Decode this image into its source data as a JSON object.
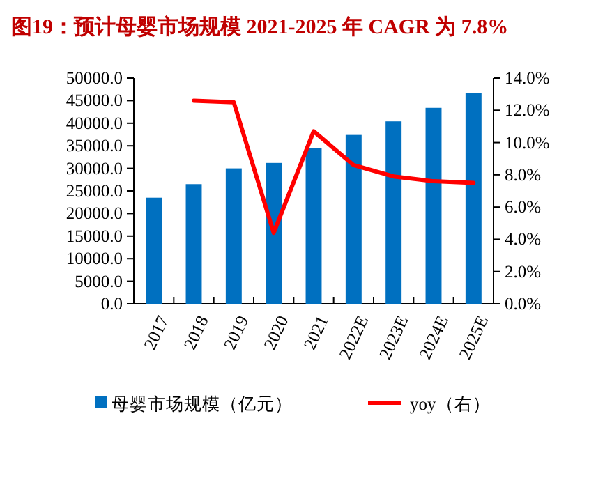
{
  "chart_data": {
    "type": "bar",
    "title": "图19：预计母婴市场规模 2021-2025 年 CAGR 为 7.8%",
    "categories": [
      "2017",
      "2018",
      "2019",
      "2020",
      "2021",
      "2022E",
      "2023E",
      "2024E",
      "2025E"
    ],
    "series": [
      {
        "name": "母婴市场规模（亿元）",
        "color": "#0070c0",
        "values": [
          23500,
          26500,
          30000,
          31200,
          34500,
          37400,
          40400,
          43400,
          46700
        ]
      },
      {
        "name": "yoy（右）",
        "type": "line",
        "axis": "y2",
        "color": "#ff0000",
        "values": [
          null,
          12.6,
          12.5,
          4.4,
          10.7,
          8.6,
          7.9,
          7.6,
          7.5
        ]
      }
    ],
    "ylim": [
      0,
      50000
    ],
    "yticks": [
      {
        "value": 0,
        "label": "0.0"
      },
      {
        "value": 5000,
        "label": "5000.0"
      },
      {
        "value": 10000,
        "label": "10000.0"
      },
      {
        "value": 15000,
        "label": "15000.0"
      },
      {
        "value": 20000,
        "label": "20000.0"
      },
      {
        "value": 25000,
        "label": "25000.0"
      },
      {
        "value": 30000,
        "label": "30000.0"
      },
      {
        "value": 35000,
        "label": "35000.0"
      },
      {
        "value": 40000,
        "label": "40000.0"
      },
      {
        "value": 45000,
        "label": "45000.0"
      },
      {
        "value": 50000,
        "label": "50000.0"
      }
    ],
    "y2lim": [
      0,
      14
    ],
    "y2ticks": [
      {
        "value": 0,
        "label": "0.0%"
      },
      {
        "value": 2,
        "label": "2.0%"
      },
      {
        "value": 4,
        "label": "4.0%"
      },
      {
        "value": 6,
        "label": "6.0%"
      },
      {
        "value": 8,
        "label": "8.0%"
      },
      {
        "value": 10,
        "label": "10.0%"
      },
      {
        "value": 12,
        "label": "12.0%"
      },
      {
        "value": 14,
        "label": "14.0%"
      }
    ],
    "legend": "bottom",
    "grid": false
  }
}
